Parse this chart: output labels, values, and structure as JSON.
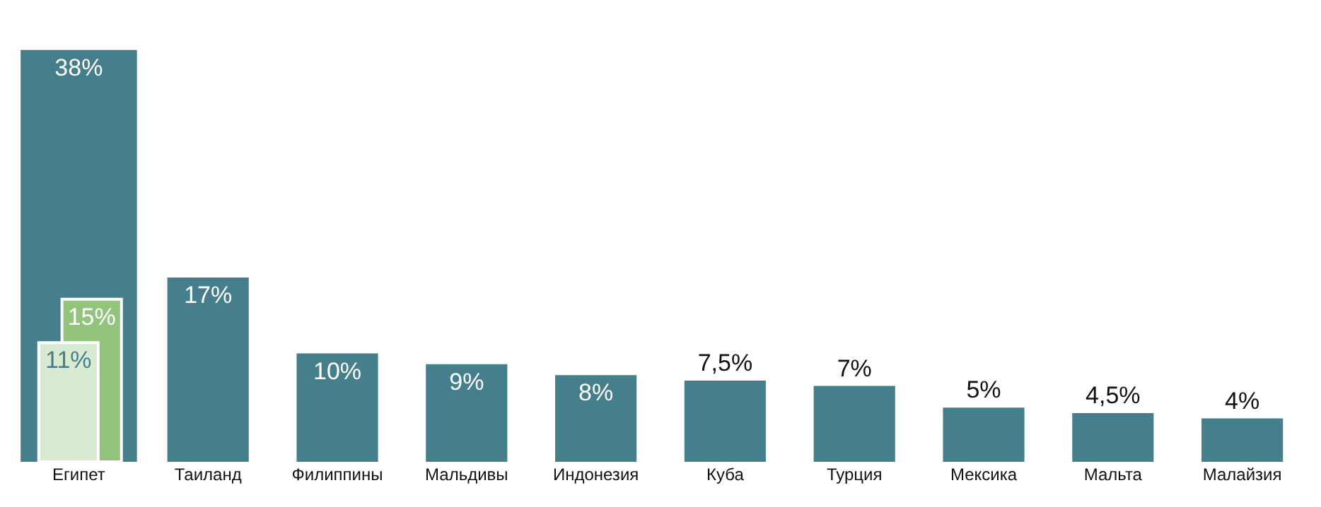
{
  "chart_data": {
    "type": "bar",
    "categories": [
      "Египет",
      "Таиланд",
      "Филиппины",
      "Мальдивы",
      "Индонезия",
      "Куба",
      "Турция",
      "Мексика",
      "Мальта",
      "Малайзия"
    ],
    "series": [
      {
        "color": "#467f8c",
        "values": [
          38,
          17,
          10,
          9,
          8,
          7.5,
          7,
          5,
          4.5,
          4
        ],
        "value_labels": [
          "38%",
          "17%",
          "10%",
          "9%",
          "8%",
          "7,5%",
          "7%",
          "5%",
          "4,5%",
          "4%"
        ]
      },
      {
        "color": "#93c47d",
        "values": [
          15,
          null,
          null,
          null,
          null,
          null,
          null,
          null,
          null,
          null
        ],
        "value_labels": [
          "15%",
          null,
          null,
          null,
          null,
          null,
          null,
          null,
          null,
          null
        ]
      },
      {
        "color": "#d9ead3",
        "values": [
          11,
          null,
          null,
          null,
          null,
          null,
          null,
          null,
          null,
          null
        ],
        "value_labels": [
          "11%",
          null,
          null,
          null,
          null,
          null,
          null,
          null,
          null,
          null
        ]
      }
    ]
  }
}
